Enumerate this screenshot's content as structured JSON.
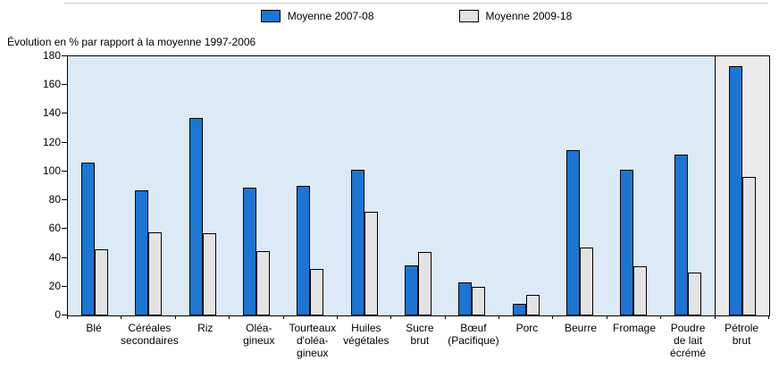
{
  "legend": [
    {
      "label": "Moyenne 2007-08",
      "color": "#1b75d2"
    },
    {
      "label": "Moyenne 2009-18",
      "color": "#e3e3e3"
    }
  ],
  "axis_title": "Évolution en % par rapport à la moyenne 1997-2006",
  "chart_data": {
    "type": "bar",
    "title": "",
    "xlabel": "",
    "ylabel": "Évolution en % par rapport à la moyenne 1997-2006",
    "ylim": [
      0,
      180
    ],
    "ytick_step": 20,
    "grid": false,
    "legend_position": "top",
    "plot_background": "#dce9f7",
    "highlight_background": "#ebebeb",
    "highlight_last_category": true,
    "categories": [
      "Blé",
      "Céréales\nsecondaires",
      "Riz",
      "Oléa-\ngineux",
      "Tourteaux\nd'oléa-\ngineux",
      "Huiles\nvégétales",
      "Sucre\nbrut",
      "Bœuf\n(Pacifique)",
      "Porc",
      "Beurre",
      "Fromage",
      "Poudre\nde lait\nécrémé",
      "Pétrole\nbrut"
    ],
    "series": [
      {
        "name": "Moyenne 2007-08",
        "color": "#1b75d2",
        "values": [
          106,
          87,
          137,
          89,
          90,
          101,
          35,
          23,
          8,
          115,
          101,
          112,
          173
        ]
      },
      {
        "name": "Moyenne 2009-18",
        "color": "#e3e3e3",
        "values": [
          46,
          58,
          57,
          45,
          32,
          72,
          44,
          20,
          14,
          47,
          34,
          30,
          96
        ]
      }
    ]
  }
}
